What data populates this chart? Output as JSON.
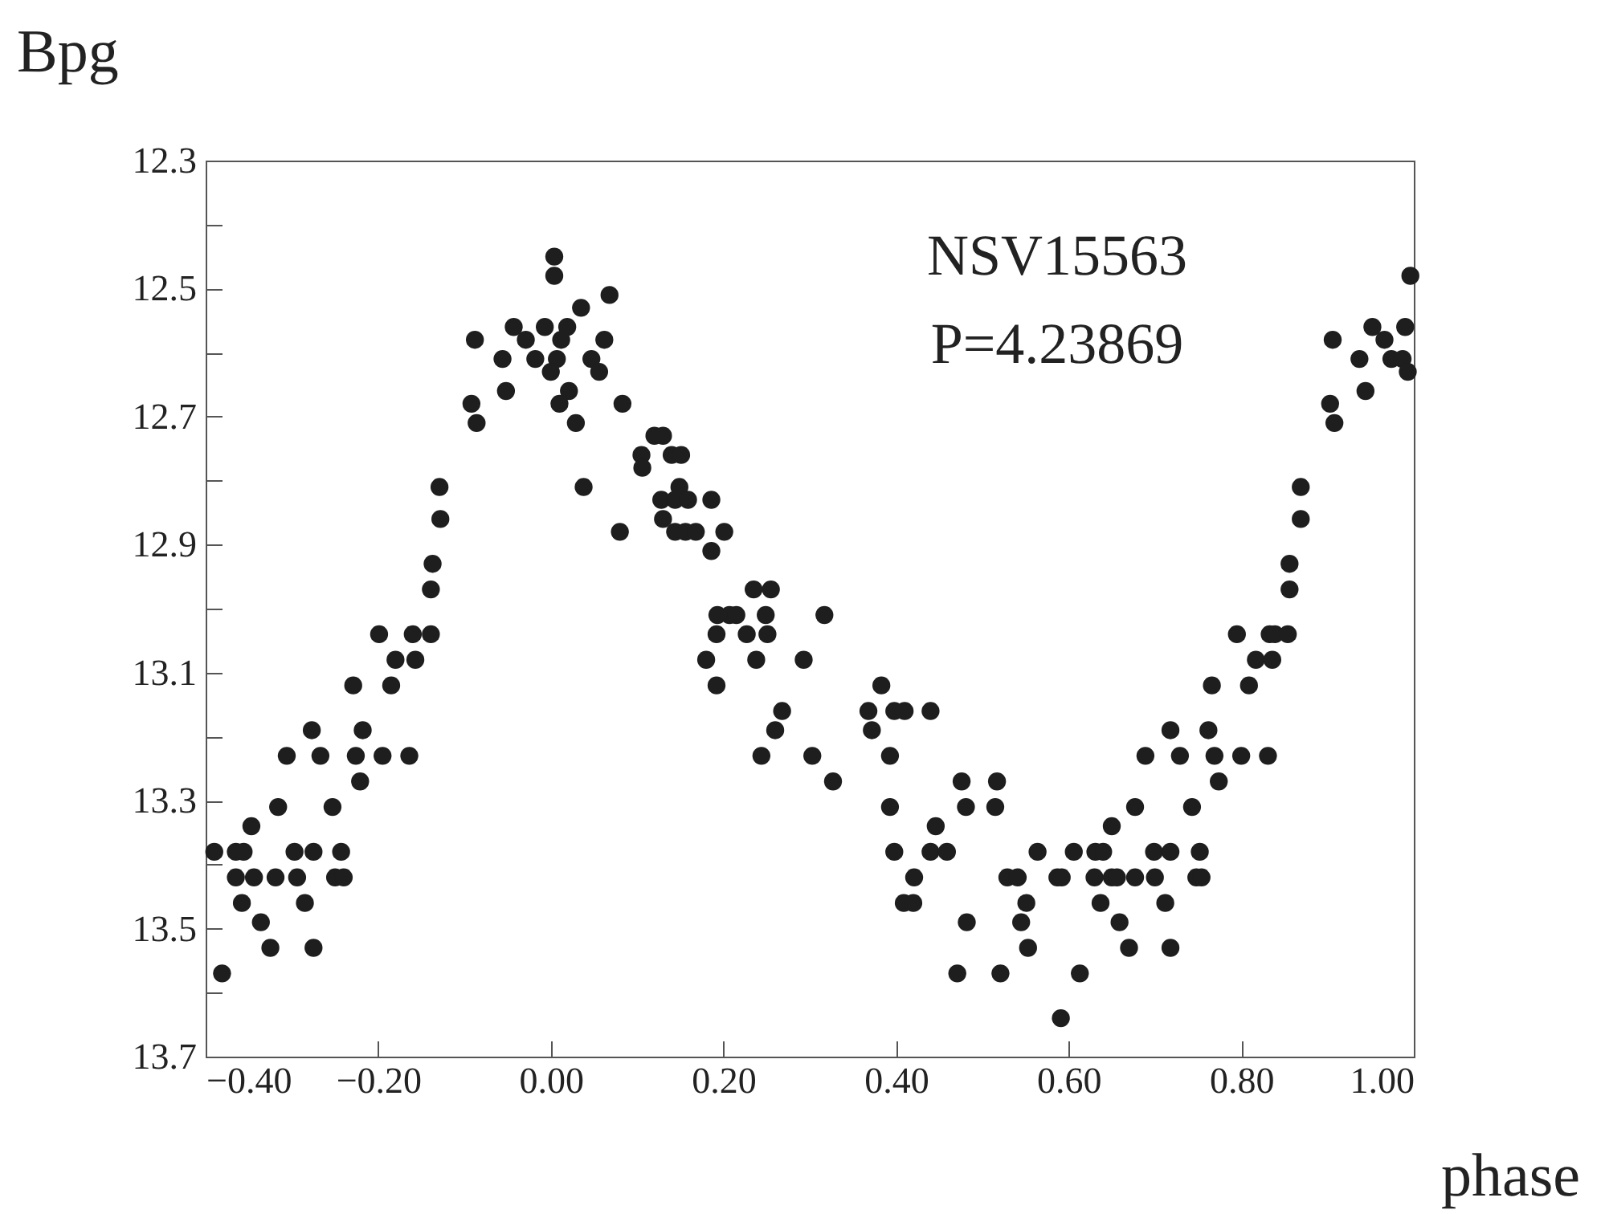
{
  "chart_data": {
    "type": "scatter",
    "xlabel": "phase",
    "ylabel": "Bpg",
    "annotations": [
      "NSV15563",
      "P=4.23869"
    ],
    "xlim": [
      -0.4,
      1.0
    ],
    "ylim": [
      13.7,
      12.3
    ],
    "xticks": [
      {
        "value": -0.4,
        "label": "−0.40"
      },
      {
        "value": -0.2,
        "label": "−0.20"
      },
      {
        "value": 0,
        "label": "0.00"
      },
      {
        "value": 0.2,
        "label": "0.20"
      },
      {
        "value": 0.4,
        "label": "0.40"
      },
      {
        "value": 0.6,
        "label": "0.60"
      },
      {
        "value": 0.8,
        "label": "0.80"
      },
      {
        "value": 1.0,
        "label": "1.00"
      }
    ],
    "yticks": [
      12.3,
      {
        "value": 12.4,
        "label": null
      },
      12.5,
      {
        "value": 12.6,
        "label": null
      },
      12.7,
      {
        "value": 12.8,
        "label": null
      },
      12.9,
      {
        "value": 13.0,
        "label": null
      },
      13.1,
      {
        "value": 13.2,
        "label": null
      },
      13.3,
      {
        "value": 13.4,
        "label": null
      },
      13.5,
      {
        "value": 13.6,
        "label": null
      },
      13.7
    ],
    "marker": "circle",
    "series": [
      {
        "color": "#1e1e1e",
        "x": [
          -0.39,
          -0.365,
          -0.356,
          -0.365,
          -0.344,
          -0.319,
          -0.294,
          -0.25,
          -0.24,
          -0.358,
          -0.347,
          -0.336,
          -0.325,
          -0.381,
          -0.316,
          -0.297,
          -0.275,
          -0.243,
          -0.285,
          -0.275,
          -0.253,
          -0.306,
          -0.267,
          -0.226,
          -0.195,
          -0.164,
          -0.277,
          -0.218,
          -0.221,
          -0.229,
          -0.185,
          -0.199,
          -0.16,
          -0.139,
          -0.18,
          -0.157,
          -0.139,
          -0.137,
          -0.128,
          -0.129,
          -0.092,
          -0.086,
          -0.088,
          -0.052,
          -0.056,
          -0.018,
          0.007,
          -0.043,
          -0.007,
          0.019,
          -0.029,
          0.012,
          0.0,
          0.004,
          0.004,
          0.035,
          0.021,
          0.01,
          0.029,
          0.047,
          0.056,
          0.038,
          0.062,
          0.068,
          0.083,
          0.12,
          0.13,
          0.105,
          0.14,
          0.151,
          0.106,
          0.08,
          0.149,
          0.128,
          0.144,
          0.159,
          0.186,
          0.13,
          0.144,
          0.156,
          0.168,
          0.201,
          0.186,
          0.235,
          0.255,
          0.193,
          0.207,
          0.215,
          0.249,
          0.317,
          0.192,
          0.227,
          0.251,
          0.18,
          0.238,
          0.293,
          0.192,
          0.268,
          0.26,
          0.244,
          0.303,
          0.327,
          0.383,
          0.368,
          0.398,
          0.41,
          0.44,
          0.372,
          0.393,
          0.476,
          0.517,
          0.393,
          0.481,
          0.515,
          0.446,
          0.398,
          0.44,
          0.459,
          0.564,
          0.421,
          0.529,
          0.541,
          0.587,
          0.409,
          0.42,
          0.551,
          0.482,
          0.545,
          0.553,
          0.471,
          0.521,
          0.591,
          0.795,
          0.833,
          0.839,
          0.817,
          0.836,
          0.766,
          0.809,
          0.718,
          0.762,
          0.689,
          0.729,
          0.769,
          0.8,
          0.831,
          0.774,
          0.677,
          0.743,
          0.65,
          0.606,
          0.631,
          0.64,
          0.699,
          0.718,
          0.752,
          0.592,
          0.63,
          0.65,
          0.656,
          0.677,
          0.7,
          0.748,
          0.754,
          0.637,
          0.712,
          0.659,
          0.67,
          0.718,
          0.613,
          0.996,
          0.906,
          0.952,
          0.99,
          0.966,
          0.937,
          0.974,
          0.987,
          0.993,
          0.944,
          0.903,
          0.908,
          0.869,
          0.869,
          0.856,
          0.856,
          0.854
        ],
        "values": [
          13.38,
          13.38,
          13.38,
          13.42,
          13.42,
          13.42,
          13.42,
          13.42,
          13.42,
          13.46,
          13.34,
          13.49,
          13.53,
          13.57,
          13.31,
          13.38,
          13.38,
          13.38,
          13.46,
          13.53,
          13.31,
          13.23,
          13.23,
          13.23,
          13.23,
          13.23,
          13.19,
          13.19,
          13.27,
          13.12,
          13.12,
          13.04,
          13.04,
          13.04,
          13.08,
          13.08,
          12.97,
          12.93,
          12.86,
          12.81,
          12.68,
          12.71,
          12.58,
          12.66,
          12.61,
          12.61,
          12.61,
          12.56,
          12.56,
          12.56,
          12.58,
          12.58,
          12.63,
          12.45,
          12.48,
          12.53,
          12.66,
          12.68,
          12.71,
          12.61,
          12.63,
          12.81,
          12.58,
          12.51,
          12.68,
          12.73,
          12.73,
          12.76,
          12.76,
          12.76,
          12.78,
          12.88,
          12.81,
          12.83,
          12.83,
          12.83,
          12.83,
          12.86,
          12.88,
          12.88,
          12.88,
          12.88,
          12.91,
          12.97,
          12.97,
          13.01,
          13.01,
          13.01,
          13.01,
          13.01,
          13.04,
          13.04,
          13.04,
          13.08,
          13.08,
          13.08,
          13.12,
          13.16,
          13.19,
          13.23,
          13.23,
          13.27,
          13.12,
          13.16,
          13.16,
          13.16,
          13.16,
          13.19,
          13.23,
          13.27,
          13.27,
          13.31,
          13.31,
          13.31,
          13.34,
          13.38,
          13.38,
          13.38,
          13.38,
          13.42,
          13.42,
          13.42,
          13.42,
          13.46,
          13.46,
          13.46,
          13.49,
          13.49,
          13.53,
          13.57,
          13.57,
          13.64,
          13.04,
          13.04,
          13.04,
          13.08,
          13.08,
          13.12,
          13.12,
          13.19,
          13.19,
          13.23,
          13.23,
          13.23,
          13.23,
          13.23,
          13.27,
          13.31,
          13.31,
          13.34,
          13.38,
          13.38,
          13.38,
          13.38,
          13.38,
          13.38,
          13.42,
          13.42,
          13.42,
          13.42,
          13.42,
          13.42,
          13.42,
          13.42,
          13.46,
          13.46,
          13.49,
          13.53,
          13.53,
          13.57,
          12.48,
          12.58,
          12.56,
          12.56,
          12.58,
          12.61,
          12.61,
          12.61,
          12.63,
          12.66,
          12.68,
          12.71,
          12.81,
          12.86,
          12.93,
          12.97,
          13.04
        ]
      }
    ]
  }
}
